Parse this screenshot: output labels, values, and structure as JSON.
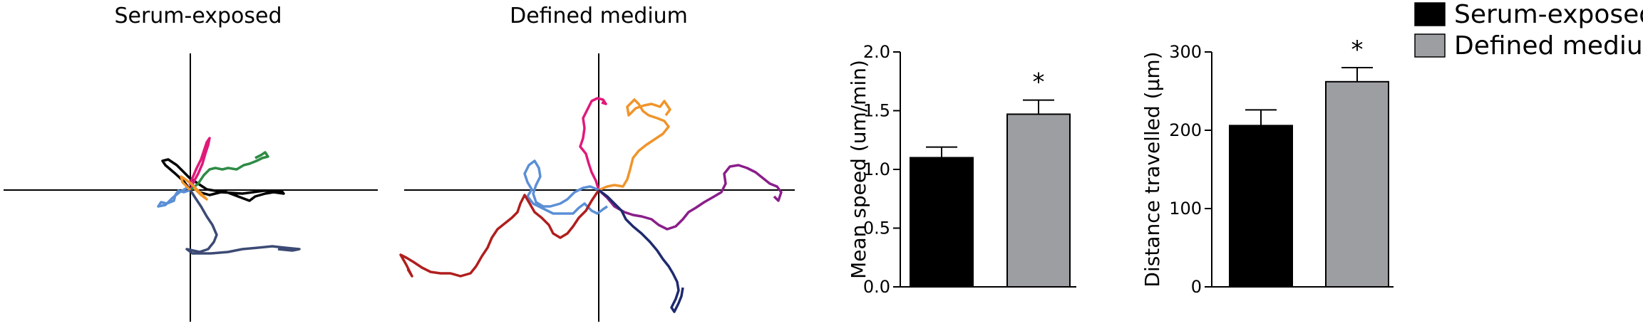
{
  "colors": {
    "serum": "#000000",
    "defined": "#9d9ea2",
    "track_black": "#000000",
    "track_pink": "#e0197a",
    "track_green": "#2e8b45",
    "track_blue": "#5b8fd6",
    "track_orange": "#f0942a",
    "track_navy": "#3c4a74",
    "track_red": "#b01e1e",
    "track_purple": "#8a1e8a",
    "track_darknavy": "#1e2a6e"
  },
  "track_plots": [
    {
      "title": "Serum-exposed",
      "tracks": [
        {
          "color": "track_black",
          "icon": "cell-track"
        },
        {
          "color": "track_pink",
          "icon": "cell-track"
        },
        {
          "color": "track_green",
          "icon": "cell-track"
        },
        {
          "color": "track_blue",
          "icon": "cell-track"
        },
        {
          "color": "track_orange",
          "icon": "cell-track"
        },
        {
          "color": "track_navy",
          "icon": "cell-track"
        }
      ]
    },
    {
      "title": "Defined medium",
      "tracks": [
        {
          "color": "track_pink",
          "icon": "cell-track"
        },
        {
          "color": "track_orange",
          "icon": "cell-track"
        },
        {
          "color": "track_blue",
          "icon": "cell-track"
        },
        {
          "color": "track_red",
          "icon": "cell-track"
        },
        {
          "color": "track_purple",
          "icon": "cell-track"
        },
        {
          "color": "track_darknavy",
          "icon": "cell-track"
        }
      ]
    }
  ],
  "legend": {
    "placement": "top-right",
    "items": [
      {
        "label": "Serum-exposed",
        "color": "serum"
      },
      {
        "label": "Defined medium",
        "color": "defined"
      }
    ]
  },
  "chart_data": [
    {
      "type": "bar",
      "categories": [
        "Serum-exposed",
        "Defined medium"
      ],
      "values": [
        1.1,
        1.47
      ],
      "errors": [
        0.09,
        0.12
      ],
      "annotations": [
        "",
        "*"
      ],
      "title": "",
      "xlabel": "",
      "ylabel": "Mean speed (um/min)",
      "ylim": [
        0,
        2.0
      ],
      "yticks": [
        0.0,
        0.5,
        1.0,
        1.5,
        2.0
      ],
      "ytick_labels": [
        "0.0",
        "0.5",
        "1.0",
        "1.5",
        "2.0"
      ],
      "grid": false
    },
    {
      "type": "bar",
      "categories": [
        "Serum-exposed",
        "Defined medium"
      ],
      "values": [
        206,
        262
      ],
      "errors": [
        20,
        18
      ],
      "annotations": [
        "",
        "*"
      ],
      "title": "",
      "xlabel": "",
      "ylabel": "Distance travelled (μm)",
      "ylim": [
        0,
        300
      ],
      "yticks": [
        0,
        100,
        200,
        300
      ],
      "ytick_labels": [
        "0",
        "100",
        "200",
        "300"
      ],
      "grid": false
    }
  ]
}
